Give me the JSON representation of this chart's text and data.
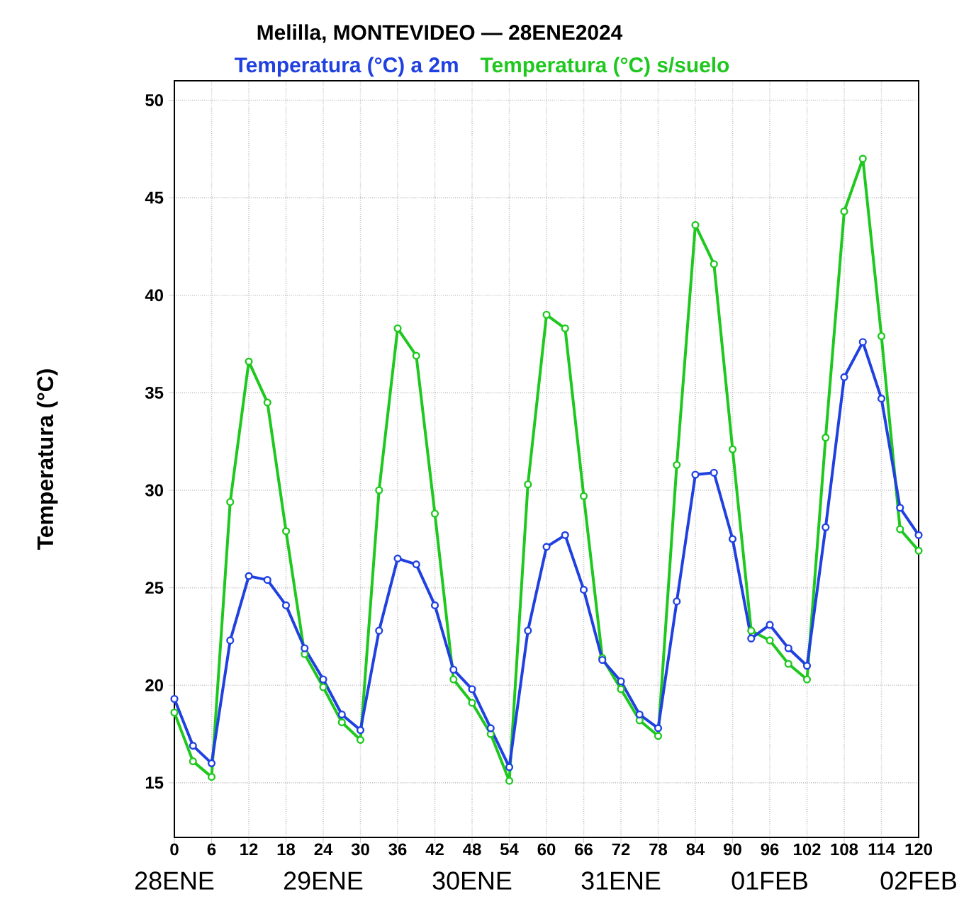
{
  "chart_data": {
    "type": "line",
    "title": "Melilla, MONTEVIDEO — 28ENE2024",
    "ylabel": "Temperatura (°C)",
    "x": [
      0,
      3,
      6,
      9,
      12,
      15,
      18,
      21,
      24,
      27,
      30,
      33,
      36,
      39,
      42,
      45,
      48,
      51,
      54,
      57,
      60,
      63,
      66,
      69,
      72,
      75,
      78,
      81,
      84,
      87,
      90,
      93,
      96,
      99,
      102,
      105,
      108,
      111,
      114,
      117,
      120
    ],
    "series": [
      {
        "name": "Temperatura (°C) a 2m",
        "color": "#2040e0",
        "values": [
          19.3,
          16.9,
          16.0,
          22.3,
          25.6,
          25.4,
          24.1,
          21.9,
          20.3,
          18.5,
          17.7,
          22.8,
          26.5,
          26.2,
          24.1,
          20.8,
          19.8,
          17.8,
          15.8,
          22.8,
          27.1,
          27.7,
          24.9,
          21.3,
          20.2,
          18.5,
          17.8,
          24.3,
          30.8,
          30.9,
          27.5,
          22.4,
          23.1,
          21.9,
          21.0,
          28.1,
          35.8,
          37.6,
          34.7,
          29.1,
          27.7
        ]
      },
      {
        "name": "Temperatura (°C) s/suelo",
        "color": "#1ec81e",
        "values": [
          18.6,
          16.1,
          15.3,
          29.4,
          36.6,
          34.5,
          27.9,
          21.6,
          19.9,
          18.1,
          17.2,
          30.0,
          38.3,
          36.9,
          28.8,
          20.3,
          19.1,
          17.5,
          15.1,
          30.3,
          39.0,
          38.3,
          29.7,
          21.4,
          19.8,
          18.2,
          17.4,
          31.3,
          43.6,
          41.6,
          32.1,
          22.8,
          22.3,
          21.1,
          20.3,
          32.7,
          44.3,
          47.0,
          37.9,
          28.0,
          26.9
        ]
      }
    ],
    "xlim": [
      0,
      120
    ],
    "xticks": [
      0,
      6,
      12,
      18,
      24,
      30,
      36,
      42,
      48,
      54,
      60,
      66,
      72,
      78,
      84,
      90,
      96,
      102,
      108,
      114,
      120
    ],
    "annotations": [
      "28ENE",
      "29ENE",
      "30ENE",
      "31ENE",
      "01FEB",
      "02FEB"
    ],
    "ylim": [
      12.2,
      51
    ],
    "yticks": [
      15,
      20,
      25,
      30,
      35,
      40,
      45,
      50
    ],
    "grid": true,
    "legend": "top",
    "marker": "circle",
    "line_style": "solid"
  }
}
